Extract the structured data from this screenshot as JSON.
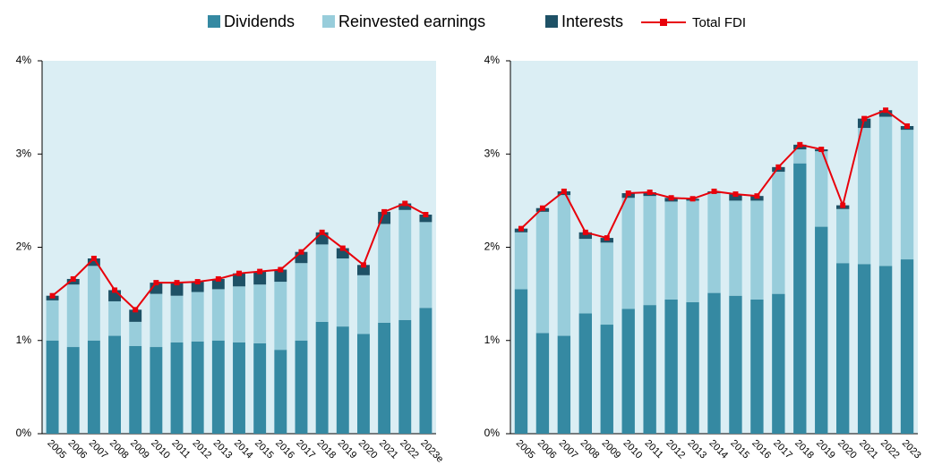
{
  "chart_data": [
    {
      "type": "bar",
      "stacked": true,
      "categories": [
        "2005",
        "2006",
        "2007",
        "2008",
        "2009",
        "2010",
        "2011",
        "2012",
        "2013",
        "2014",
        "2015",
        "2016",
        "2017",
        "2018",
        "2019",
        "2020",
        "2021",
        "2022",
        "2023e"
      ],
      "series": [
        {
          "name": "Dividends",
          "color": "#3589a2",
          "values": [
            1.0,
            0.93,
            1.0,
            1.05,
            0.94,
            0.93,
            0.98,
            0.99,
            1.0,
            0.98,
            0.97,
            0.9,
            1.0,
            1.2,
            1.15,
            1.07,
            1.19,
            1.22,
            1.35
          ]
        },
        {
          "name": "Reinvested earnings",
          "color": "#98cddb",
          "values": [
            0.43,
            0.67,
            0.8,
            0.37,
            0.26,
            0.57,
            0.5,
            0.53,
            0.55,
            0.6,
            0.63,
            0.73,
            0.83,
            0.83,
            0.73,
            0.63,
            1.06,
            1.18,
            0.92
          ]
        },
        {
          "name": "Interests",
          "color": "#1e5166",
          "values": [
            0.05,
            0.06,
            0.08,
            0.12,
            0.13,
            0.12,
            0.14,
            0.11,
            0.11,
            0.14,
            0.14,
            0.13,
            0.12,
            0.13,
            0.11,
            0.11,
            0.13,
            0.07,
            0.08
          ]
        },
        {
          "name": "Total FDI",
          "type": "line",
          "color": "#e8000b",
          "values": [
            1.48,
            1.66,
            1.88,
            1.54,
            1.33,
            1.62,
            1.62,
            1.63,
            1.66,
            1.72,
            1.74,
            1.76,
            1.95,
            2.16,
            1.99,
            1.81,
            2.38,
            2.47,
            2.35
          ]
        }
      ],
      "ylim": [
        0,
        4
      ],
      "yticks": [
        {
          "value": 0,
          "label": "0%"
        },
        {
          "value": 1,
          "label": "1%"
        },
        {
          "value": 2,
          "label": "2%"
        },
        {
          "value": 3,
          "label": "3%"
        },
        {
          "value": 4,
          "label": "4%"
        }
      ],
      "grid": false
    },
    {
      "type": "bar",
      "stacked": true,
      "categories": [
        "2005",
        "2006",
        "2007",
        "2008",
        "2009",
        "2010",
        "2011",
        "2012",
        "2013",
        "2014",
        "2015",
        "2016",
        "2017",
        "2018",
        "2019",
        "2020",
        "2021",
        "2022",
        "2023"
      ],
      "series": [
        {
          "name": "Dividends",
          "color": "#3589a2",
          "values": [
            1.55,
            1.08,
            1.05,
            1.29,
            1.17,
            1.34,
            1.38,
            1.44,
            1.41,
            1.51,
            1.48,
            1.44,
            1.5,
            2.9,
            2.22,
            1.83,
            1.82,
            1.8,
            1.87
          ]
        },
        {
          "name": "Reinvested earnings",
          "color": "#98cddb",
          "values": [
            0.61,
            1.3,
            1.51,
            0.8,
            0.88,
            1.19,
            1.17,
            1.05,
            1.09,
            1.07,
            1.02,
            1.06,
            1.31,
            0.15,
            0.81,
            0.58,
            1.46,
            1.6,
            1.39
          ]
        },
        {
          "name": "Interests",
          "color": "#1e5166",
          "values": [
            0.04,
            0.04,
            0.04,
            0.07,
            0.05,
            0.05,
            0.04,
            0.04,
            0.02,
            0.02,
            0.07,
            0.05,
            0.05,
            0.05,
            0.02,
            0.04,
            0.1,
            0.07,
            0.04
          ]
        },
        {
          "name": "Total FDI",
          "type": "line",
          "color": "#e8000b",
          "values": [
            2.2,
            2.42,
            2.6,
            2.16,
            2.1,
            2.58,
            2.59,
            2.53,
            2.52,
            2.6,
            2.57,
            2.55,
            2.86,
            3.1,
            3.05,
            2.45,
            3.38,
            3.47,
            3.3
          ]
        }
      ],
      "ylim": [
        0,
        4
      ],
      "yticks": [
        {
          "value": 0,
          "label": "0%"
        },
        {
          "value": 1,
          "label": "1%"
        },
        {
          "value": 2,
          "label": "2%"
        },
        {
          "value": 3,
          "label": "3%"
        },
        {
          "value": 4,
          "label": "4%"
        }
      ],
      "grid": false
    }
  ]
}
